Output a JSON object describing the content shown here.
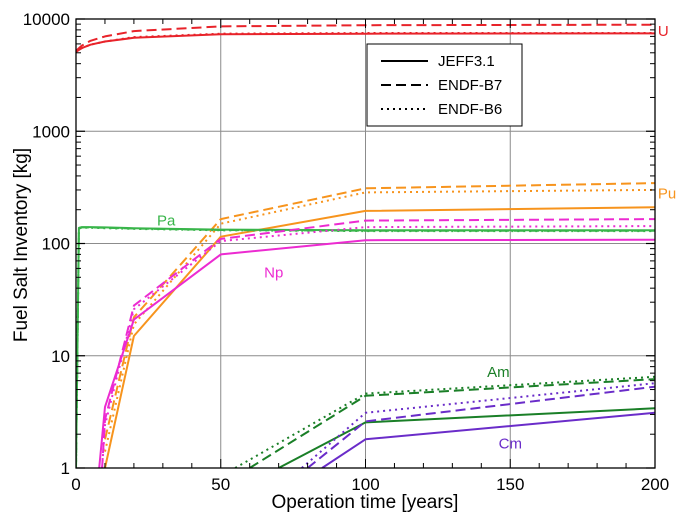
{
  "chart_data": {
    "type": "line",
    "title": "",
    "xlabel": "Operation time [years]",
    "ylabel": "Fuel Salt Inventory [kg]",
    "xlim": [
      0,
      200
    ],
    "ylim": [
      1,
      10000
    ],
    "yscale": "log",
    "grid": true,
    "x_ticks": [
      0,
      50,
      100,
      150,
      200
    ],
    "x_tick_labels": [
      "0",
      "50",
      "100",
      "150",
      "200"
    ],
    "y_ticks": [
      1,
      10,
      100,
      1000,
      10000
    ],
    "y_tick_labels": [
      "1",
      "10",
      "100",
      "1000",
      "10000"
    ],
    "legend": {
      "placement": "top-right",
      "entries": [
        {
          "label": "JEFF3.1",
          "dash": "solid"
        },
        {
          "label": "ENDF-B7",
          "dash": "dashed"
        },
        {
          "label": "ENDF-B6",
          "dash": "dotted"
        }
      ]
    },
    "element_labels": [
      {
        "text": "U",
        "color": "#e8232a",
        "x": 201,
        "y": 7800
      },
      {
        "text": "Pu",
        "color": "#f7941d",
        "x": 201,
        "y": 280
      },
      {
        "text": "Pa",
        "color": "#39b54a",
        "x": 28,
        "y": 160
      },
      {
        "text": "Np",
        "color": "#ec2bd1",
        "x": 65,
        "y": 55
      },
      {
        "text": "Am",
        "color": "#1a7f27",
        "x": 142,
        "y": 7.2
      },
      {
        "text": "Cm",
        "color": "#6a2cc9",
        "x": 146,
        "y": 1.65
      }
    ],
    "series": [
      {
        "element": "U",
        "library": "JEFF3.1",
        "color": "#e8232a",
        "dash": "solid",
        "x": [
          0,
          2,
          5,
          10,
          20,
          50,
          100,
          200
        ],
        "y": [
          5100,
          5500,
          5900,
          6300,
          6800,
          7300,
          7400,
          7450
        ]
      },
      {
        "element": "U",
        "library": "ENDF-B7",
        "color": "#e8232a",
        "dash": "dashed",
        "x": [
          0,
          2,
          5,
          10,
          20,
          50,
          100,
          200
        ],
        "y": [
          5200,
          5800,
          6400,
          7000,
          7800,
          8600,
          8800,
          8900
        ]
      },
      {
        "element": "U",
        "library": "ENDF-B6",
        "color": "#e8232a",
        "dash": "dotted",
        "x": [
          0,
          2,
          5,
          10,
          20,
          50,
          100,
          200
        ],
        "y": [
          5100,
          5500,
          5900,
          6300,
          6900,
          7400,
          7500,
          7500
        ]
      },
      {
        "element": "Pu",
        "library": "JEFF3.1",
        "color": "#f7941d",
        "dash": "solid",
        "x": [
          10,
          20,
          50,
          100,
          200
        ],
        "y": [
          1,
          15,
          115,
          195,
          210
        ]
      },
      {
        "element": "Pu",
        "library": "ENDF-B7",
        "color": "#f7941d",
        "dash": "dashed",
        "x": [
          10,
          20,
          50,
          100,
          200
        ],
        "y": [
          1.8,
          22,
          165,
          310,
          345
        ]
      },
      {
        "element": "Pu",
        "library": "ENDF-B6",
        "color": "#f7941d",
        "dash": "dotted",
        "x": [
          10,
          20,
          50,
          100,
          200
        ],
        "y": [
          1.4,
          19,
          150,
          285,
          300
        ]
      },
      {
        "element": "Pa",
        "library": "JEFF3.1",
        "color": "#39b54a",
        "dash": "solid",
        "x": [
          0,
          1,
          2,
          5,
          10,
          20,
          50,
          100,
          200
        ],
        "y": [
          1,
          138,
          140,
          140,
          139,
          137,
          133,
          131,
          131
        ]
      },
      {
        "element": "Pa",
        "library": "ENDF-B7",
        "color": "#39b54a",
        "dash": "dashed",
        "x": [
          0,
          1,
          2,
          5,
          10,
          20,
          50,
          100,
          200
        ],
        "y": [
          1,
          137,
          139,
          139,
          138,
          136,
          132,
          130,
          130
        ]
      },
      {
        "element": "Pa",
        "library": "ENDF-B6",
        "color": "#39b54a",
        "dash": "dotted",
        "x": [
          0,
          1,
          2,
          5,
          10,
          20,
          50,
          100,
          200
        ],
        "y": [
          1,
          136,
          138,
          138,
          137,
          135,
          131,
          129,
          129
        ]
      },
      {
        "element": "Np",
        "library": "JEFF3.1",
        "color": "#ec2bd1",
        "dash": "solid",
        "x": [
          8,
          10,
          20,
          50,
          100,
          200
        ],
        "y": [
          1,
          3.5,
          21,
          80,
          107,
          108
        ]
      },
      {
        "element": "Np",
        "library": "ENDF-B7",
        "color": "#ec2bd1",
        "dash": "dashed",
        "x": [
          9,
          10,
          20,
          50,
          100,
          200
        ],
        "y": [
          1,
          2.7,
          28,
          110,
          160,
          165
        ]
      },
      {
        "element": "Np",
        "library": "ENDF-B6",
        "color": "#ec2bd1",
        "dash": "dotted",
        "x": [
          9,
          10,
          20,
          50,
          100,
          200
        ],
        "y": [
          1,
          2.4,
          26,
          105,
          140,
          143
        ]
      },
      {
        "element": "Am",
        "library": "JEFF3.1",
        "color": "#1a7f27",
        "dash": "solid",
        "x": [
          70,
          100,
          200
        ],
        "y": [
          1,
          2.55,
          3.4
        ]
      },
      {
        "element": "Am",
        "library": "ENDF-B7",
        "color": "#1a7f27",
        "dash": "dashed",
        "x": [
          60,
          100,
          200
        ],
        "y": [
          1,
          4.4,
          6.2
        ]
      },
      {
        "element": "Am",
        "library": "ENDF-B6",
        "color": "#1a7f27",
        "dash": "dotted",
        "x": [
          55,
          100,
          200
        ],
        "y": [
          1,
          4.6,
          6.5
        ]
      },
      {
        "element": "Cm",
        "library": "JEFF3.1",
        "color": "#6a2cc9",
        "dash": "solid",
        "x": [
          85,
          100,
          200
        ],
        "y": [
          1,
          1.8,
          3.1
        ]
      },
      {
        "element": "Cm",
        "library": "ENDF-B7",
        "color": "#6a2cc9",
        "dash": "dashed",
        "x": [
          80,
          100,
          200
        ],
        "y": [
          1,
          2.6,
          5.3
        ]
      },
      {
        "element": "Cm",
        "library": "ENDF-B6",
        "color": "#6a2cc9",
        "dash": "dotted",
        "x": [
          78,
          100,
          200
        ],
        "y": [
          1,
          3.1,
          5.7
        ]
      }
    ]
  }
}
